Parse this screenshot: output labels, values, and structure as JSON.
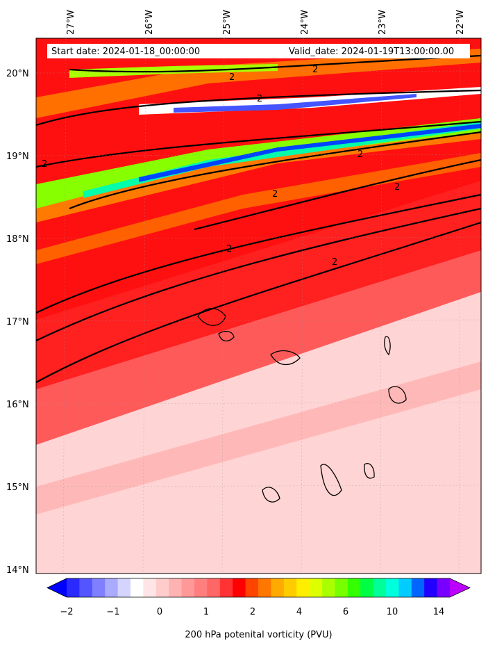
{
  "header": {
    "start_date": "Start date: 2024-01-18_00:00:00",
    "valid_date": "Valid_date: 2024-01-19T13:00:00.00"
  },
  "axes": {
    "lon_labels": [
      "27°W",
      "26°W",
      "25°W",
      "24°W",
      "23°W",
      "22°W"
    ],
    "lat_labels": [
      "20°N",
      "19°N",
      "18°N",
      "17°N",
      "16°N",
      "15°N",
      "14°N"
    ]
  },
  "contour_label": "2",
  "colorbar": {
    "title": "200 hPa potenital vorticity (PVU)",
    "tick_labels": [
      "−2",
      "−1",
      "0",
      "1",
      "2",
      "4",
      "6",
      "10",
      "14"
    ],
    "colors": [
      "#0000ff",
      "#2a2aff",
      "#5555ff",
      "#7f7fff",
      "#aaaaff",
      "#d4d4ff",
      "#ffffff",
      "#ffe5e5",
      "#ffcccc",
      "#ffb2b2",
      "#ff9999",
      "#ff7f7f",
      "#ff6666",
      "#ff3333",
      "#ff0000",
      "#ff4400",
      "#ff7700",
      "#ffaa00",
      "#ffcc00",
      "#ffee00",
      "#ddff00",
      "#aaff00",
      "#77ff00",
      "#33ff00",
      "#00ff44",
      "#00ff99",
      "#00ffdd",
      "#00ccff",
      "#0066ff",
      "#2200ff",
      "#7700ff",
      "#bb00ff"
    ]
  }
}
